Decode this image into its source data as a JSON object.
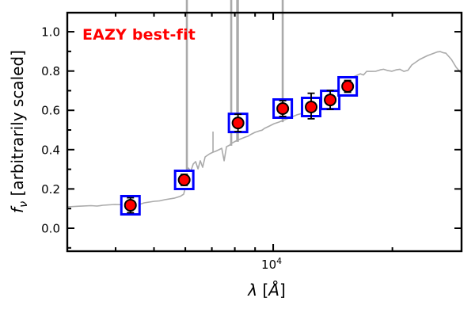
{
  "figure": {
    "background": "#ffffff"
  },
  "chart_data": {
    "type": "line",
    "title": "EAZY best-fit",
    "xlabel": "λ [Å]",
    "xlabel_parts": {
      "symbol": "λ",
      "open": " [",
      "unit": "Å",
      "close": "]"
    },
    "ylabel": "fν [arbitrarily scaled]",
    "ylabel_parts": {
      "symbol": "f",
      "subscript": "ν",
      "units": " [arbitrarily scaled]"
    },
    "x_scale": "log",
    "xlim": [
      3020,
      29900
    ],
    "ylim": [
      -0.117,
      1.097
    ],
    "grid": false,
    "legend": null,
    "colors": {
      "spectrum": "#aaaaaa",
      "marker_fill": "#ff0000",
      "marker_edge": "#000000",
      "square_edge": "#0000ff",
      "square_fill": "#ffffff",
      "errorbar": "#000000",
      "annotation": "#ff0000",
      "axis": "#000000"
    },
    "x_ticks": {
      "major": [
        {
          "value": 10000,
          "label_base": "10",
          "label_exp": "4"
        }
      ],
      "minor": [
        4000,
        5000,
        6000,
        7000,
        8000,
        9000,
        20000
      ]
    },
    "y_ticks": {
      "major": [
        {
          "value": 0.0,
          "label": "0.0"
        },
        {
          "value": 0.2,
          "label": "0.2"
        },
        {
          "value": 0.4,
          "label": "0.4"
        },
        {
          "value": 0.6,
          "label": "0.6"
        },
        {
          "value": 0.8,
          "label": "0.8"
        },
        {
          "value": 1.0,
          "label": "1.0"
        }
      ],
      "minor": [
        -0.1,
        0.1,
        0.3,
        0.5,
        0.7,
        0.9
      ]
    },
    "series": [
      {
        "name": "eazy-model-spectrum",
        "type": "line",
        "color": "#aaaaaa",
        "points": [
          [
            3020,
            0.109
          ],
          [
            3236,
            0.112
          ],
          [
            3467,
            0.115
          ],
          [
            3590,
            0.113
          ],
          [
            3715,
            0.117
          ],
          [
            3981,
            0.121
          ],
          [
            4227,
            0.119
          ],
          [
            4467,
            0.123
          ],
          [
            4590,
            0.121
          ],
          [
            4721,
            0.129
          ],
          [
            5012,
            0.137
          ],
          [
            5160,
            0.139
          ],
          [
            5321,
            0.145
          ],
          [
            5623,
            0.153
          ],
          [
            5834,
            0.163
          ],
          [
            5943,
            0.173
          ],
          [
            5998,
            0.206
          ],
          [
            6053,
            0.294
          ],
          [
            6109,
            0.306
          ],
          [
            6194,
            0.29
          ],
          [
            6281,
            0.327
          ],
          [
            6368,
            0.339
          ],
          [
            6457,
            0.302
          ],
          [
            6546,
            0.343
          ],
          [
            6637,
            0.31
          ],
          [
            6730,
            0.363
          ],
          [
            6823,
            0.371
          ],
          [
            6918,
            0.379
          ],
          [
            7047,
            0.387
          ],
          [
            7145,
            0.391
          ],
          [
            7278,
            0.399
          ],
          [
            7413,
            0.407
          ],
          [
            7516,
            0.343
          ],
          [
            7621,
            0.415
          ],
          [
            7762,
            0.423
          ],
          [
            7834,
            0.431
          ],
          [
            7980,
            0.44
          ],
          [
            8128,
            0.448
          ],
          [
            8318,
            0.456
          ],
          [
            8511,
            0.464
          ],
          [
            8630,
            0.468
          ],
          [
            8750,
            0.476
          ],
          [
            8995,
            0.488
          ],
          [
            9247,
            0.496
          ],
          [
            9370,
            0.499
          ],
          [
            9506,
            0.508
          ],
          [
            9772,
            0.52
          ],
          [
            10046,
            0.532
          ],
          [
            10328,
            0.54
          ],
          [
            10568,
            0.548
          ],
          [
            10814,
            0.556
          ],
          [
            11117,
            0.565
          ],
          [
            11482,
            0.577
          ],
          [
            11858,
            0.585
          ],
          [
            12303,
            0.597
          ],
          [
            12530,
            0.601
          ],
          [
            12764,
            0.613
          ],
          [
            13243,
            0.629
          ],
          [
            13490,
            0.633
          ],
          [
            13740,
            0.645
          ],
          [
            14256,
            0.677
          ],
          [
            14791,
            0.71
          ],
          [
            15346,
            0.742
          ],
          [
            15922,
            0.77
          ],
          [
            16596,
            0.786
          ],
          [
            16900,
            0.78
          ],
          [
            17219,
            0.798
          ],
          [
            17783,
            0.798
          ],
          [
            18170,
            0.799
          ],
          [
            18621,
            0.806
          ],
          [
            19000,
            0.809
          ],
          [
            19498,
            0.802
          ],
          [
            19950,
            0.799
          ],
          [
            20417,
            0.806
          ],
          [
            20900,
            0.809
          ],
          [
            21380,
            0.798
          ],
          [
            21900,
            0.804
          ],
          [
            22387,
            0.831
          ],
          [
            23442,
            0.859
          ],
          [
            24547,
            0.879
          ],
          [
            25468,
            0.891
          ],
          [
            25950,
            0.897
          ],
          [
            26424,
            0.899
          ],
          [
            26900,
            0.893
          ],
          [
            27290,
            0.891
          ],
          [
            28184,
            0.859
          ],
          [
            28974,
            0.819
          ],
          [
            29923,
            0.786
          ]
        ]
      },
      {
        "name": "observed-photometry",
        "type": "scatter",
        "points": [
          {
            "lambda": 4360,
            "f": 0.117,
            "err_plus": 0.038,
            "err_minus": 0.038
          },
          {
            "lambda": 5960,
            "f": 0.246,
            "err_plus": 0.028,
            "err_minus": 0.028
          },
          {
            "lambda": 8150,
            "f": 0.536,
            "err_plus": 0.044,
            "err_minus": 0.044
          },
          {
            "lambda": 10570,
            "f": 0.609,
            "err_plus": 0.04,
            "err_minus": 0.04
          },
          {
            "lambda": 12470,
            "f": 0.617,
            "err_plus": 0.07,
            "err_minus": 0.06
          },
          {
            "lambda": 13930,
            "f": 0.653,
            "err_plus": 0.048,
            "err_minus": 0.048
          },
          {
            "lambda": 15420,
            "f": 0.722,
            "err_plus": 0.03,
            "err_minus": 0.03
          }
        ]
      }
    ],
    "emission_spikes": [
      {
        "lambda": 6053,
        "base": 0.25,
        "top": 1.16,
        "clipped": true,
        "width": 2.6
      },
      {
        "lambda": 7047,
        "base": 0.387,
        "top": 0.492,
        "clipped": false,
        "width": 1.6
      },
      {
        "lambda": 7834,
        "base": 0.42,
        "top": 1.16,
        "clipped": true,
        "width": 2.6
      },
      {
        "lambda": 8128,
        "base": 0.44,
        "top": 1.16,
        "clipped": true,
        "width": 3.4
      },
      {
        "lambda": 10568,
        "base": 0.54,
        "top": 1.16,
        "clipped": true,
        "width": 2.6
      }
    ]
  }
}
